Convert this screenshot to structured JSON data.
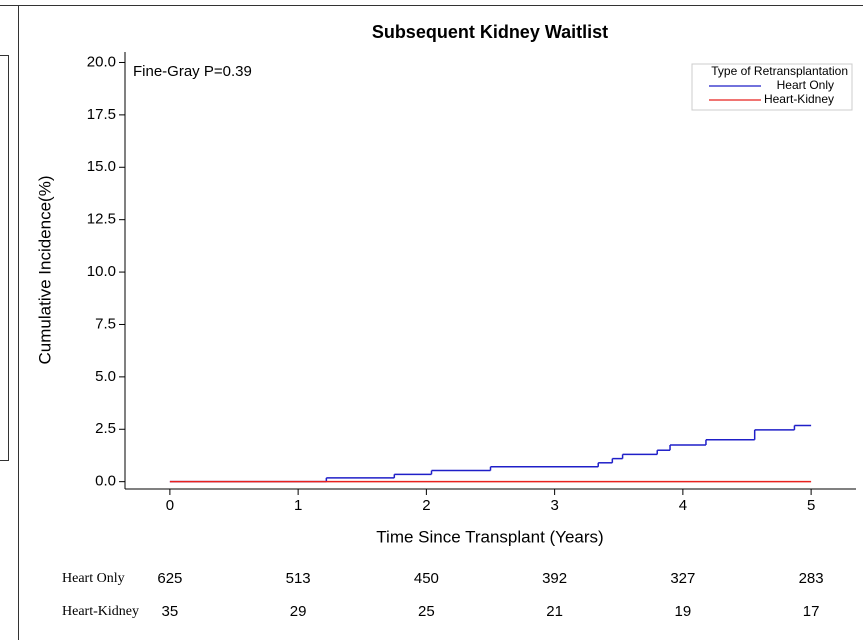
{
  "chart_data": {
    "type": "step",
    "title": "Subsequent Kidney Waitlist",
    "annotation": "Fine-Gray P=0.39",
    "xlabel": "Time Since Transplant (Years)",
    "ylabel": "Cumulative Incidence(%)",
    "xlim": [
      -0.35,
      5.35
    ],
    "ylim": [
      -0.35,
      20.5
    ],
    "xticks": [
      0,
      1,
      2,
      3,
      4,
      5
    ],
    "yticks": [
      {
        "value": 0,
        "label": "0.0"
      },
      {
        "value": 2.5,
        "label": "2.5"
      },
      {
        "value": 5,
        "label": "5.0"
      },
      {
        "value": 7.5,
        "label": "7.5"
      },
      {
        "value": 10,
        "label": "10.0"
      },
      {
        "value": 12.5,
        "label": "12.5"
      },
      {
        "value": 15,
        "label": "15.0"
      },
      {
        "value": 17.5,
        "label": "17.5"
      },
      {
        "value": 20,
        "label": "20.0"
      }
    ],
    "legend_title": "Type of Retransplantation",
    "legend_position": "top-right",
    "series": [
      {
        "name": "Heart Only",
        "color": "#1f1fc8",
        "x": [
          0,
          1.22,
          1.75,
          2.04,
          2.5,
          3.34,
          3.45,
          3.53,
          3.8,
          3.9,
          4.18,
          4.56,
          4.87,
          5
        ],
        "values": [
          0,
          0.18,
          0.35,
          0.53,
          0.71,
          0.9,
          1.1,
          1.3,
          1.5,
          1.75,
          2.0,
          2.47,
          2.68,
          2.68
        ]
      },
      {
        "name": "Heart-Kidney",
        "color": "#e8221f",
        "x": [
          0,
          5
        ],
        "values": [
          0,
          0
        ]
      }
    ],
    "risk_table": [
      {
        "name": "Heart Only",
        "color": "#4a72c8",
        "values": [
          625,
          513,
          450,
          392,
          327,
          283
        ]
      },
      {
        "name": "Heart-Kidney",
        "color": "#e8221f",
        "values": [
          35,
          29,
          25,
          21,
          19,
          17
        ]
      }
    ]
  }
}
